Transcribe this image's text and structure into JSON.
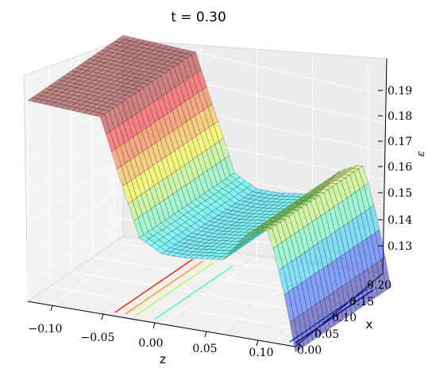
{
  "chart_data": {
    "type": "surface3d",
    "title": "t = 0.30",
    "xlabel": "x",
    "ylabel": "z",
    "zlabel": "ε",
    "x_ticks": [
      "0.00",
      "0.05",
      "0.10",
      "0.15",
      "0.20"
    ],
    "z_ticks": [
      "−0.10",
      "−0.05",
      "0.00",
      "0.05",
      "0.10"
    ],
    "eps_ticks": [
      "0.13",
      "0.14",
      "0.15",
      "0.16",
      "0.17",
      "0.18",
      "0.19"
    ],
    "xlim": [
      0.0,
      0.22
    ],
    "zlim": [
      -0.12,
      0.12
    ],
    "epslim": [
      0.124,
      0.199
    ],
    "grid": true,
    "colormap": "jet",
    "surface_alpha": 0.45,
    "profile_eps_vs_z": {
      "z": [
        -0.12,
        -0.07,
        -0.055,
        -0.02,
        0.0,
        0.018,
        0.055,
        0.075,
        0.09
      ],
      "eps": [
        0.19,
        0.19,
        0.19,
        0.152,
        0.148,
        0.148,
        0.15,
        0.16,
        0.163
      ]
    },
    "edge_bump_peak": 0.166,
    "contour_levels": [
      0.19,
      0.18,
      0.17,
      0.16,
      0.15,
      0.14,
      0.13
    ],
    "contour_colors": [
      "#7f0000",
      "#ff1a00",
      "#ff9900",
      "#aaff44",
      "#3fffb0",
      "#0044ff",
      "#00007f"
    ]
  }
}
